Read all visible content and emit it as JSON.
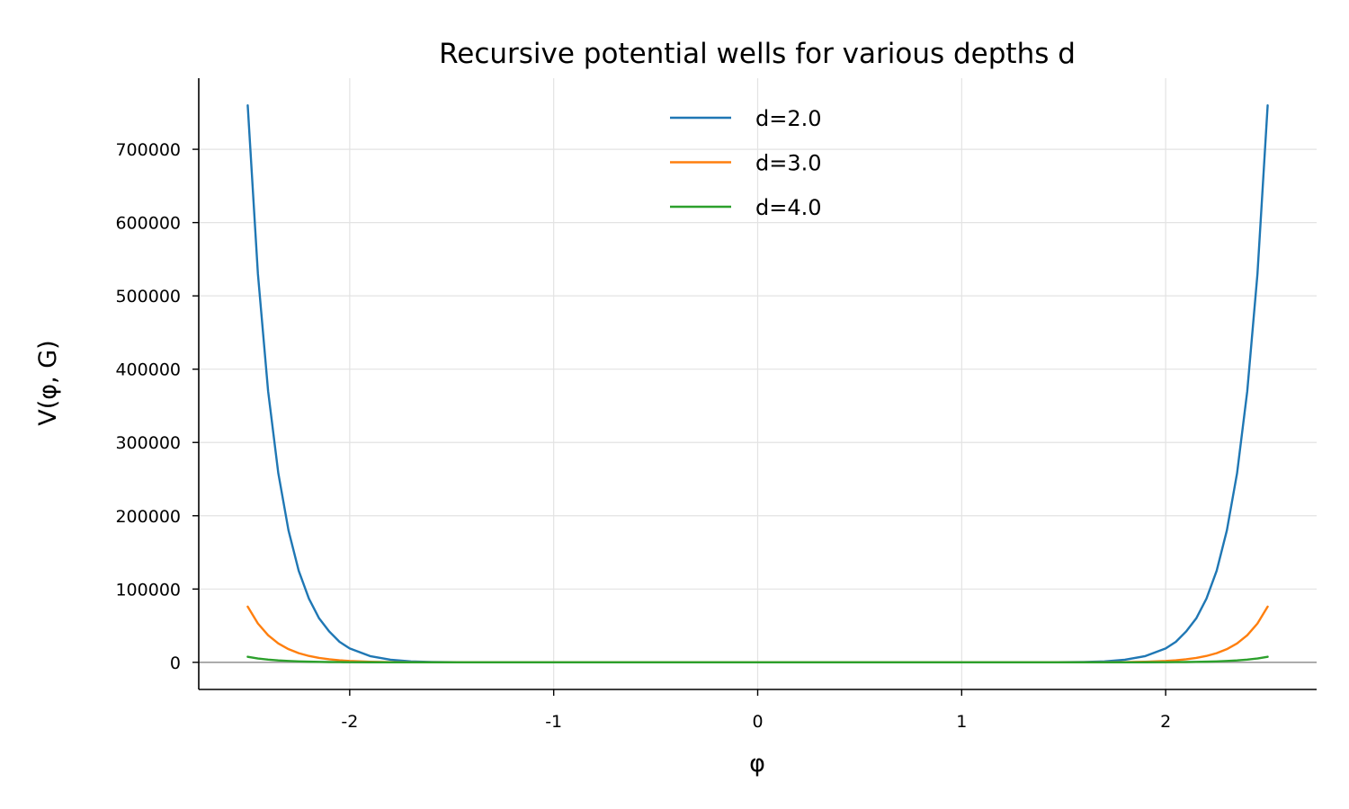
{
  "chart_data": {
    "type": "line",
    "title": "Recursive potential wells for various depths d",
    "xlabel": "φ",
    "ylabel": "V(φ, G)",
    "xlim": [
      -2.74,
      2.74
    ],
    "ylim": [
      -37000,
      797000
    ],
    "x_ticks": [
      -2,
      -1,
      0,
      1,
      2
    ],
    "x_tick_labels": [
      "-2",
      "-1",
      "0",
      "1",
      "2"
    ],
    "y_ticks": [
      0,
      100000,
      200000,
      300000,
      400000,
      500000,
      600000,
      700000
    ],
    "y_tick_labels": [
      "0",
      "100000",
      "200000",
      "300000",
      "400000",
      "500000",
      "600000",
      "700000"
    ],
    "grid": true,
    "zero_line": true,
    "legend_position": "top-center",
    "x": [
      -2.5,
      -2.45,
      -2.4,
      -2.35,
      -2.3,
      -2.25,
      -2.2,
      -2.15,
      -2.1,
      -2.05,
      -2.0,
      -1.9,
      -1.8,
      -1.7,
      -1.6,
      -1.4,
      -1.0,
      -0.5,
      0.0,
      0.5,
      1.0,
      1.4,
      1.6,
      1.7,
      1.8,
      1.9,
      2.0,
      2.05,
      2.1,
      2.15,
      2.2,
      2.25,
      2.3,
      2.35,
      2.4,
      2.45,
      2.5
    ],
    "series": [
      {
        "name": "d=2.0",
        "color": "#1f77b4",
        "values": [
          760000,
          530000,
          370000,
          258000,
          180000,
          125000,
          87000,
          60000,
          42000,
          28000,
          19000,
          8500,
          3500,
          1300,
          500,
          80,
          0,
          0,
          0,
          0,
          0,
          80,
          500,
          1300,
          3500,
          8500,
          19000,
          28000,
          42000,
          60000,
          87000,
          125000,
          180000,
          258000,
          370000,
          530000,
          760000
        ]
      },
      {
        "name": "d=3.0",
        "color": "#ff7f0e",
        "values": [
          76000,
          53000,
          37000,
          25800,
          18000,
          12500,
          8700,
          6000,
          4200,
          2800,
          1900,
          850,
          350,
          130,
          50,
          8,
          0,
          0,
          0,
          0,
          0,
          8,
          50,
          130,
          350,
          850,
          1900,
          2800,
          4200,
          6000,
          8700,
          12500,
          18000,
          25800,
          37000,
          53000,
          76000
        ]
      },
      {
        "name": "d=4.0",
        "color": "#2ca02c",
        "values": [
          7600,
          5300,
          3700,
          2580,
          1800,
          1250,
          870,
          600,
          420,
          280,
          190,
          85,
          35,
          13,
          5,
          1,
          0,
          0,
          0,
          0,
          0,
          1,
          5,
          13,
          35,
          85,
          190,
          280,
          420,
          600,
          870,
          1250,
          1800,
          2580,
          3700,
          5300,
          7600
        ]
      }
    ]
  }
}
